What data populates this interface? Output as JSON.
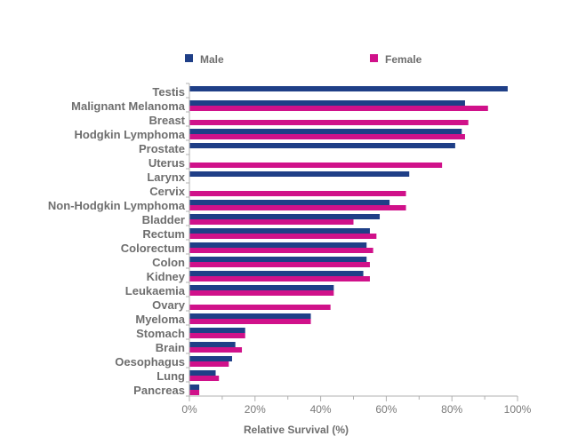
{
  "chart_data": {
    "type": "bar",
    "orientation": "horizontal",
    "categories": [
      "Testis",
      "Malignant Melanoma",
      "Breast",
      "Hodgkin Lymphoma",
      "Prostate",
      "Uterus",
      "Larynx",
      "Cervix",
      "Non-Hodgkin Lymphoma",
      "Bladder",
      "Rectum",
      "Colorectum",
      "Colon",
      "Kidney",
      "Leukaemia",
      "Ovary",
      "Myeloma",
      "Stomach",
      "Brain",
      "Oesophagus",
      "Lung",
      "Pancreas"
    ],
    "series": [
      {
        "name": "Male",
        "color": "#1f3f87",
        "values": [
          97,
          84,
          null,
          83,
          81,
          null,
          67,
          null,
          61,
          58,
          55,
          54,
          54,
          53,
          44,
          null,
          37,
          17,
          14,
          13,
          8,
          3
        ]
      },
      {
        "name": "Female",
        "color": "#d0118a",
        "values": [
          null,
          91,
          85,
          84,
          null,
          77,
          null,
          66,
          66,
          50,
          57,
          56,
          55,
          55,
          44,
          43,
          37,
          17,
          16,
          12,
          9,
          3
        ]
      }
    ],
    "xlabel": "Relative Survival (%)",
    "ylabel": "",
    "xlim": [
      0,
      100
    ],
    "xticks": [
      "0%",
      "20%",
      "40%",
      "60%",
      "80%",
      "100%"
    ],
    "grid": false,
    "legend_position": "top"
  }
}
